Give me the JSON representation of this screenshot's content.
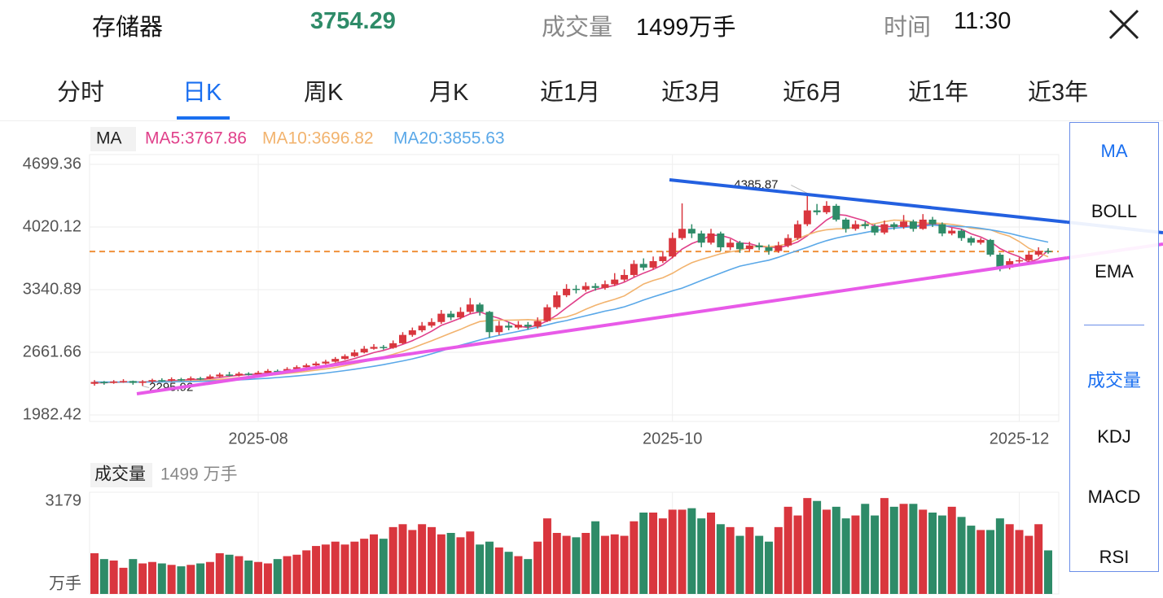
{
  "header": {
    "name": "存储器",
    "price": "3754.29",
    "volume_label": "成交量",
    "volume": "1499万手",
    "time_label": "时间",
    "time": "11:30"
  },
  "tabs": [
    "分时",
    "日K",
    "周K",
    "月K",
    "近1月",
    "近3月",
    "近6月",
    "近1年",
    "近3年"
  ],
  "indicators": {
    "main": [
      "MA",
      "BOLL",
      "EMA"
    ],
    "sub": [
      "成交量",
      "KDJ",
      "MACD",
      "RSI"
    ]
  },
  "chart_data": {
    "type": "candlestick",
    "legend_title": "MA",
    "up_color": "#d9363e",
    "down_color": "#2e8b68",
    "last_price_color": "#f0913a",
    "ylim": [
      1982.42,
      4699.36
    ],
    "yticks": [
      1982.42,
      2661.66,
      3340.89,
      4020.12,
      4699.36
    ],
    "grid": true,
    "categories": [
      null,
      null,
      null,
      null,
      null,
      null,
      null,
      null,
      null,
      null,
      null,
      null,
      null,
      null,
      null,
      null,
      null,
      "2025-08",
      null,
      null,
      null,
      null,
      null,
      null,
      null,
      null,
      null,
      null,
      null,
      null,
      null,
      null,
      null,
      null,
      null,
      null,
      null,
      null,
      null,
      null,
      null,
      null,
      null,
      null,
      null,
      null,
      null,
      null,
      null,
      null,
      null,
      null,
      null,
      null,
      null,
      null,
      null,
      null,
      null,
      null,
      "2025-10",
      null,
      null,
      null,
      null,
      null,
      null,
      null,
      null,
      null,
      null,
      null,
      null,
      null,
      null,
      null,
      null,
      null,
      null,
      null,
      null,
      null,
      null,
      null,
      null,
      null,
      null,
      null,
      null,
      null,
      null,
      null,
      null,
      null,
      null,
      null,
      "2025-12",
      null,
      null,
      null
    ],
    "ohlc": [
      [
        2320,
        2360,
        2300,
        2340
      ],
      [
        2340,
        2350,
        2310,
        2335
      ],
      [
        2335,
        2360,
        2320,
        2345
      ],
      [
        2345,
        2370,
        2330,
        2350
      ],
      [
        2350,
        2355,
        2310,
        2330
      ],
      [
        2330,
        2360,
        2295.92,
        2345
      ],
      [
        2345,
        2375,
        2330,
        2360
      ],
      [
        2360,
        2380,
        2340,
        2355
      ],
      [
        2355,
        2390,
        2345,
        2370
      ],
      [
        2370,
        2385,
        2350,
        2365
      ],
      [
        2365,
        2400,
        2355,
        2380
      ],
      [
        2380,
        2395,
        2360,
        2375
      ],
      [
        2375,
        2420,
        2370,
        2400
      ],
      [
        2400,
        2440,
        2390,
        2420
      ],
      [
        2420,
        2450,
        2400,
        2410
      ],
      [
        2410,
        2450,
        2400,
        2430
      ],
      [
        2430,
        2445,
        2410,
        2425
      ],
      [
        2425,
        2460,
        2415,
        2440
      ],
      [
        2440,
        2480,
        2430,
        2460
      ],
      [
        2460,
        2475,
        2435,
        2450
      ],
      [
        2450,
        2500,
        2440,
        2480
      ],
      [
        2480,
        2520,
        2470,
        2500
      ],
      [
        2500,
        2540,
        2490,
        2520
      ],
      [
        2520,
        2560,
        2505,
        2540
      ],
      [
        2540,
        2580,
        2530,
        2560
      ],
      [
        2560,
        2610,
        2550,
        2590
      ],
      [
        2590,
        2640,
        2580,
        2620
      ],
      [
        2620,
        2690,
        2610,
        2660
      ],
      [
        2660,
        2730,
        2650,
        2700
      ],
      [
        2700,
        2750,
        2690,
        2720
      ],
      [
        2720,
        2740,
        2690,
        2710
      ],
      [
        2710,
        2790,
        2700,
        2760
      ],
      [
        2760,
        2880,
        2750,
        2850
      ],
      [
        2850,
        2930,
        2830,
        2900
      ],
      [
        2900,
        2990,
        2880,
        2950
      ],
      [
        2950,
        3030,
        2930,
        2990
      ],
      [
        2990,
        3120,
        2970,
        3080
      ],
      [
        3080,
        3110,
        3010,
        3040
      ],
      [
        3040,
        3150,
        3020,
        3100
      ],
      [
        3100,
        3250,
        3080,
        3180
      ],
      [
        3180,
        3200,
        3060,
        3100
      ],
      [
        3100,
        3110,
        2820,
        2880
      ],
      [
        2880,
        3000,
        2850,
        2950
      ],
      [
        2950,
        2990,
        2900,
        2930
      ],
      [
        2930,
        3000,
        2910,
        2960
      ],
      [
        2960,
        2990,
        2910,
        2940
      ],
      [
        2940,
        3040,
        2920,
        3000
      ],
      [
        3000,
        3180,
        2990,
        3150
      ],
      [
        3150,
        3320,
        3130,
        3280
      ],
      [
        3280,
        3400,
        3260,
        3350
      ],
      [
        3350,
        3390,
        3300,
        3340
      ],
      [
        3340,
        3420,
        3320,
        3380
      ],
      [
        3380,
        3410,
        3330,
        3360
      ],
      [
        3360,
        3440,
        3340,
        3400
      ],
      [
        3400,
        3520,
        3380,
        3450
      ],
      [
        3450,
        3560,
        3430,
        3500
      ],
      [
        3500,
        3660,
        3480,
        3620
      ],
      [
        3620,
        3680,
        3550,
        3580
      ],
      [
        3580,
        3700,
        3560,
        3650
      ],
      [
        3650,
        3760,
        3630,
        3700
      ],
      [
        3700,
        3960,
        3680,
        3900
      ],
      [
        3900,
        4276,
        3880,
        4000
      ],
      [
        4000,
        4050,
        3900,
        3950
      ],
      [
        3950,
        3980,
        3800,
        3850
      ],
      [
        3850,
        4000,
        3830,
        3950
      ],
      [
        3950,
        3970,
        3760,
        3800
      ],
      [
        3800,
        3890,
        3770,
        3850
      ],
      [
        3850,
        3870,
        3740,
        3780
      ],
      [
        3780,
        3860,
        3760,
        3820
      ],
      [
        3820,
        3850,
        3770,
        3800
      ],
      [
        3800,
        3830,
        3720,
        3760
      ],
      [
        3760,
        3860,
        3740,
        3820
      ],
      [
        3820,
        3940,
        3800,
        3900
      ],
      [
        3900,
        4090,
        3880,
        4050
      ],
      [
        4050,
        4385.87,
        4030,
        4200
      ],
      [
        4200,
        4270,
        4150,
        4180
      ],
      [
        4180,
        4300,
        4160,
        4250
      ],
      [
        4250,
        4270,
        4080,
        4100
      ],
      [
        4100,
        4120,
        3960,
        4000
      ],
      [
        4000,
        4090,
        3980,
        4050
      ],
      [
        4050,
        4080,
        4000,
        4030
      ],
      [
        4030,
        4050,
        3930,
        3960
      ],
      [
        3960,
        4090,
        3940,
        4050
      ],
      [
        4050,
        4070,
        3990,
        4020
      ],
      [
        4020,
        4150,
        4000,
        4080
      ],
      [
        4080,
        4100,
        3970,
        4000
      ],
      [
        4000,
        4160,
        3990,
        4100
      ],
      [
        4100,
        4130,
        4020,
        4050
      ],
      [
        4050,
        4070,
        3920,
        3950
      ],
      [
        3950,
        4010,
        3930,
        3980
      ],
      [
        3980,
        4000,
        3870,
        3900
      ],
      [
        3900,
        3920,
        3820,
        3850
      ],
      [
        3850,
        3900,
        3830,
        3880
      ],
      [
        3880,
        3890,
        3700,
        3720
      ],
      [
        3720,
        3740,
        3540,
        3580
      ],
      [
        3580,
        3680,
        3560,
        3650
      ],
      [
        3650,
        3690,
        3600,
        3660
      ],
      [
        3660,
        3750,
        3640,
        3720
      ],
      [
        3720,
        3800,
        3700,
        3760
      ],
      [
        3760,
        3790,
        3730,
        3754.29
      ]
    ],
    "extremes": [
      4385.87,
      2295.92
    ],
    "series": [
      {
        "name": "MA5",
        "label": "MA5:3767.86",
        "color": "#e0408a",
        "values": [
          2330,
          2332,
          2335,
          2338,
          2340,
          2341,
          2346,
          2348,
          2352,
          2359,
          2366,
          2369,
          2378,
          2388,
          2401,
          2413,
          2421,
          2425,
          2437,
          2441,
          2451,
          2466,
          2482,
          2500,
          2520,
          2542,
          2566,
          2594,
          2626,
          2658,
          2682,
          2714,
          2748,
          2788,
          2836,
          2890,
          2954,
          2992,
          3032,
          3078,
          3100,
          3060,
          3030,
          2988,
          2944,
          2932,
          2956,
          3000,
          3066,
          3146,
          3224,
          3300,
          3342,
          3366,
          3386,
          3422,
          3474,
          3520,
          3560,
          3610,
          3690,
          3780,
          3840,
          3880,
          3930,
          3930,
          3900,
          3846,
          3840,
          3810,
          3802,
          3796,
          3820,
          3858,
          3926,
          4010,
          4096,
          4156,
          4146,
          4116,
          4086,
          4028,
          4026,
          4024,
          4038,
          4022,
          4050,
          4050,
          4040,
          4016,
          3996,
          3946,
          3912,
          3862,
          3786,
          3736,
          3698,
          3638,
          3674,
          3767.86
        ]
      },
      {
        "name": "MA10",
        "label": "MA10:3696.82",
        "color": "#f2b36e",
        "values": [
          2335,
          2334,
          2336,
          2338,
          2339,
          2340,
          2342,
          2344,
          2346,
          2350,
          2353,
          2357,
          2362,
          2368,
          2377,
          2387,
          2395,
          2402,
          2412,
          2421,
          2432,
          2443,
          2455,
          2468,
          2482,
          2497,
          2516,
          2538,
          2560,
          2582,
          2612,
          2640,
          2671,
          2707,
          2747,
          2786,
          2828,
          2870,
          2910,
          2956,
          2995,
          3007,
          3011,
          3010,
          3012,
          3016,
          3008,
          3015,
          3027,
          3045,
          3080,
          3128,
          3171,
          3206,
          3236,
          3273,
          3337,
          3402,
          3441,
          3470,
          3518,
          3580,
          3633,
          3668,
          3698,
          3730,
          3750,
          3770,
          3795,
          3816,
          3806,
          3816,
          3840,
          3892,
          3935,
          3970,
          3990,
          4000,
          4002,
          4018,
          4053,
          4055,
          4078,
          4095,
          4092,
          4075,
          4062,
          4065,
          4058,
          4048,
          4033,
          4008,
          3998,
          3990,
          3950,
          3920,
          3862,
          3790,
          3742,
          3696.82
        ]
      },
      {
        "name": "MA20",
        "label": "MA20:3855.63",
        "color": "#5aa8e8",
        "values": [
          2340,
          2339,
          2339,
          2339,
          2339,
          2339,
          2340,
          2341,
          2342,
          2343,
          2345,
          2347,
          2350,
          2354,
          2358,
          2362,
          2368,
          2374,
          2380,
          2388,
          2396,
          2405,
          2415,
          2425,
          2437,
          2450,
          2463,
          2478,
          2494,
          2510,
          2528,
          2548,
          2568,
          2590,
          2616,
          2645,
          2676,
          2708,
          2738,
          2766,
          2795,
          2822,
          2846,
          2868,
          2888,
          2910,
          2934,
          2960,
          2985,
          3006,
          3032,
          3058,
          3082,
          3108,
          3128,
          3155,
          3190,
          3228,
          3262,
          3295,
          3328,
          3358,
          3398,
          3440,
          3480,
          3520,
          3560,
          3596,
          3618,
          3640,
          3660,
          3692,
          3730,
          3765,
          3800,
          3838,
          3872,
          3900,
          3922,
          3940,
          3960,
          3980,
          3995,
          4008,
          4016,
          4022,
          4032,
          4040,
          4035,
          4030,
          4024,
          4020,
          4005,
          3990,
          3972,
          3950,
          3925,
          3900,
          3878,
          3855.63
        ]
      }
    ],
    "volume": {
      "title": "成交量",
      "total": "1499 万手",
      "unit": "万手",
      "ylim": [
        0,
        3500
      ],
      "yticks": [
        3179
      ],
      "values": [
        1400,
        1200,
        1150,
        900,
        1200,
        1050,
        1100,
        1050,
        1000,
        950,
        1000,
        1050,
        1100,
        1400,
        1350,
        1300,
        1150,
        1100,
        1050,
        1200,
        1300,
        1350,
        1500,
        1650,
        1700,
        1800,
        1700,
        1800,
        1900,
        2050,
        1900,
        2300,
        2400,
        2200,
        2400,
        2300,
        2050,
        2100,
        1950,
        2150,
        1700,
        1800,
        1600,
        1450,
        1300,
        1200,
        1800,
        2600,
        2100,
        2000,
        1950,
        2100,
        2500,
        2000,
        2050,
        2000,
        2500,
        2800,
        2800,
        2600,
        2900,
        2900,
        2950,
        2600,
        2800,
        2400,
        2300,
        2000,
        2300,
        2000,
        1800,
        2300,
        3000,
        2700,
        3300,
        3200,
        2900,
        3000,
        2600,
        2700,
        3100,
        2700,
        3300,
        3000,
        3100,
        3100,
        2900,
        2800,
        2700,
        3000,
        2650,
        2350,
        2200,
        2200,
        2600,
        2400,
        2200,
        2000,
        2400,
        1499
      ]
    }
  }
}
